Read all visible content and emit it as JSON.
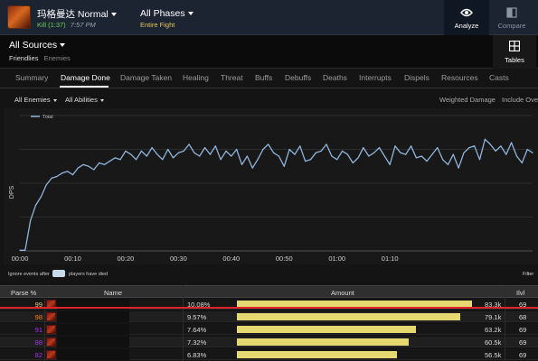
{
  "header": {
    "boss_name": "玛格曼达",
    "difficulty": "Normal",
    "kill_status": "Kill (1:37)",
    "kill_time": "7:57 PM",
    "phases_title": "All Phases",
    "phases_sub": "Entire Fight",
    "analyze_label": "Analyze",
    "compare_label": "Compare",
    "analyze_icon": "eye-icon",
    "compare_icon": "compare-icon"
  },
  "sources": {
    "title": "All Sources",
    "friendlies": "Friendlies",
    "enemies": "Enemies",
    "tables_label": "Tables",
    "tables_icon": "grid-icon"
  },
  "tabs": [
    {
      "label": "Summary",
      "active": false
    },
    {
      "label": "Damage Done",
      "active": true
    },
    {
      "label": "Damage Taken",
      "active": false
    },
    {
      "label": "Healing",
      "active": false
    },
    {
      "label": "Threat",
      "active": false
    },
    {
      "label": "Buffs",
      "active": false
    },
    {
      "label": "Debuffs",
      "active": false
    },
    {
      "label": "Deaths",
      "active": false
    },
    {
      "label": "Interrupts",
      "active": false
    },
    {
      "label": "Dispels",
      "active": false
    },
    {
      "label": "Resources",
      "active": false
    },
    {
      "label": "Casts",
      "active": false
    }
  ],
  "filters": {
    "enemies": "All Enemies",
    "abilities": "All Abilities",
    "weighted": "Weighted Damage",
    "include": "Include Over"
  },
  "chart_data": {
    "type": "line",
    "title": "",
    "xlabel": "",
    "ylabel": "DPS",
    "legend": [
      "Total"
    ],
    "legend_position": "top-left",
    "x_ticks": [
      "00:00",
      "00:10",
      "00:20",
      "00:30",
      "00:40",
      "00:50",
      "01:00",
      "01:10"
    ],
    "x_unit": "seconds",
    "xlim": [
      0,
      97
    ],
    "ylim": [
      0,
      4
    ],
    "y_ticks_labeled": false,
    "grid": true,
    "series": [
      {
        "name": "Total",
        "color": "#8fb4dc",
        "x": [
          0,
          1,
          2,
          3,
          4,
          5,
          6,
          7,
          8,
          9,
          10,
          11,
          12,
          13,
          14,
          15,
          16,
          17,
          18,
          19,
          20,
          21,
          22,
          23,
          24,
          25,
          26,
          27,
          28,
          29,
          30,
          31,
          32,
          33,
          34,
          35,
          36,
          37,
          38,
          39,
          40,
          41,
          42,
          43,
          44,
          45,
          46,
          47,
          48,
          49,
          50,
          51,
          52,
          53,
          54,
          55,
          56,
          57,
          58,
          59,
          60,
          61,
          62,
          63,
          64,
          65,
          66,
          67,
          68,
          69,
          70,
          71,
          72,
          73,
          74,
          75,
          76,
          77,
          78,
          79,
          80,
          81,
          82,
          83,
          84,
          85,
          86,
          87,
          88,
          89,
          90,
          91,
          92,
          93,
          94,
          95,
          96,
          97
        ],
        "values": [
          0.02,
          0.02,
          0.9,
          1.35,
          1.6,
          1.95,
          2.15,
          2.2,
          2.3,
          2.35,
          2.25,
          2.45,
          2.55,
          2.5,
          2.4,
          2.6,
          2.55,
          2.65,
          2.75,
          2.7,
          2.95,
          2.85,
          2.7,
          2.95,
          2.8,
          3.05,
          2.85,
          2.7,
          3.0,
          2.75,
          2.9,
          2.95,
          3.15,
          2.9,
          2.8,
          3.05,
          2.85,
          3.1,
          2.7,
          2.95,
          2.8,
          3.0,
          2.55,
          2.8,
          2.45,
          2.7,
          3.0,
          3.15,
          2.9,
          2.8,
          2.5,
          3.0,
          2.85,
          3.1,
          2.65,
          2.7,
          2.9,
          2.95,
          3.15,
          2.8,
          2.7,
          2.95,
          2.85,
          2.6,
          2.75,
          3.05,
          2.8,
          2.9,
          3.05,
          2.8,
          2.55,
          3.1,
          2.9,
          2.85,
          3.1,
          2.75,
          2.8,
          2.65,
          2.85,
          3.05,
          2.7,
          2.55,
          2.85,
          2.45,
          2.9,
          3.05,
          3.1,
          2.7,
          3.3,
          3.15,
          2.95,
          3.1,
          2.85,
          3.2,
          2.8,
          2.6,
          3.0,
          2.9
        ]
      }
    ]
  },
  "death_bar": {
    "ignore_label": "Ignore events after",
    "players_label": "players have died",
    "filter_label": "Filter"
  },
  "table": {
    "headers": {
      "parse": "Parse %",
      "name": "Name",
      "amount": "Amount",
      "ilvl": "Ilvl"
    },
    "rows": [
      {
        "parse": "99",
        "parse_color": "#e5cc80",
        "percent": "10.08%",
        "bar_fraction": 1.0,
        "amount": "83.3k",
        "ilvl": "69"
      },
      {
        "parse": "98",
        "parse_color": "#ff8000",
        "percent": "9.57%",
        "bar_fraction": 0.95,
        "amount": "79.1k",
        "ilvl": "68"
      },
      {
        "parse": "91",
        "parse_color": "#a335ee",
        "percent": "7.64%",
        "bar_fraction": 0.76,
        "amount": "63.2k",
        "ilvl": "69"
      },
      {
        "parse": "88",
        "parse_color": "#a335ee",
        "percent": "7.32%",
        "bar_fraction": 0.73,
        "amount": "60.5k",
        "ilvl": "69"
      },
      {
        "parse": "82",
        "parse_color": "#a335ee",
        "percent": "6.83%",
        "bar_fraction": 0.68,
        "amount": "56.5k",
        "ilvl": "69"
      }
    ]
  }
}
